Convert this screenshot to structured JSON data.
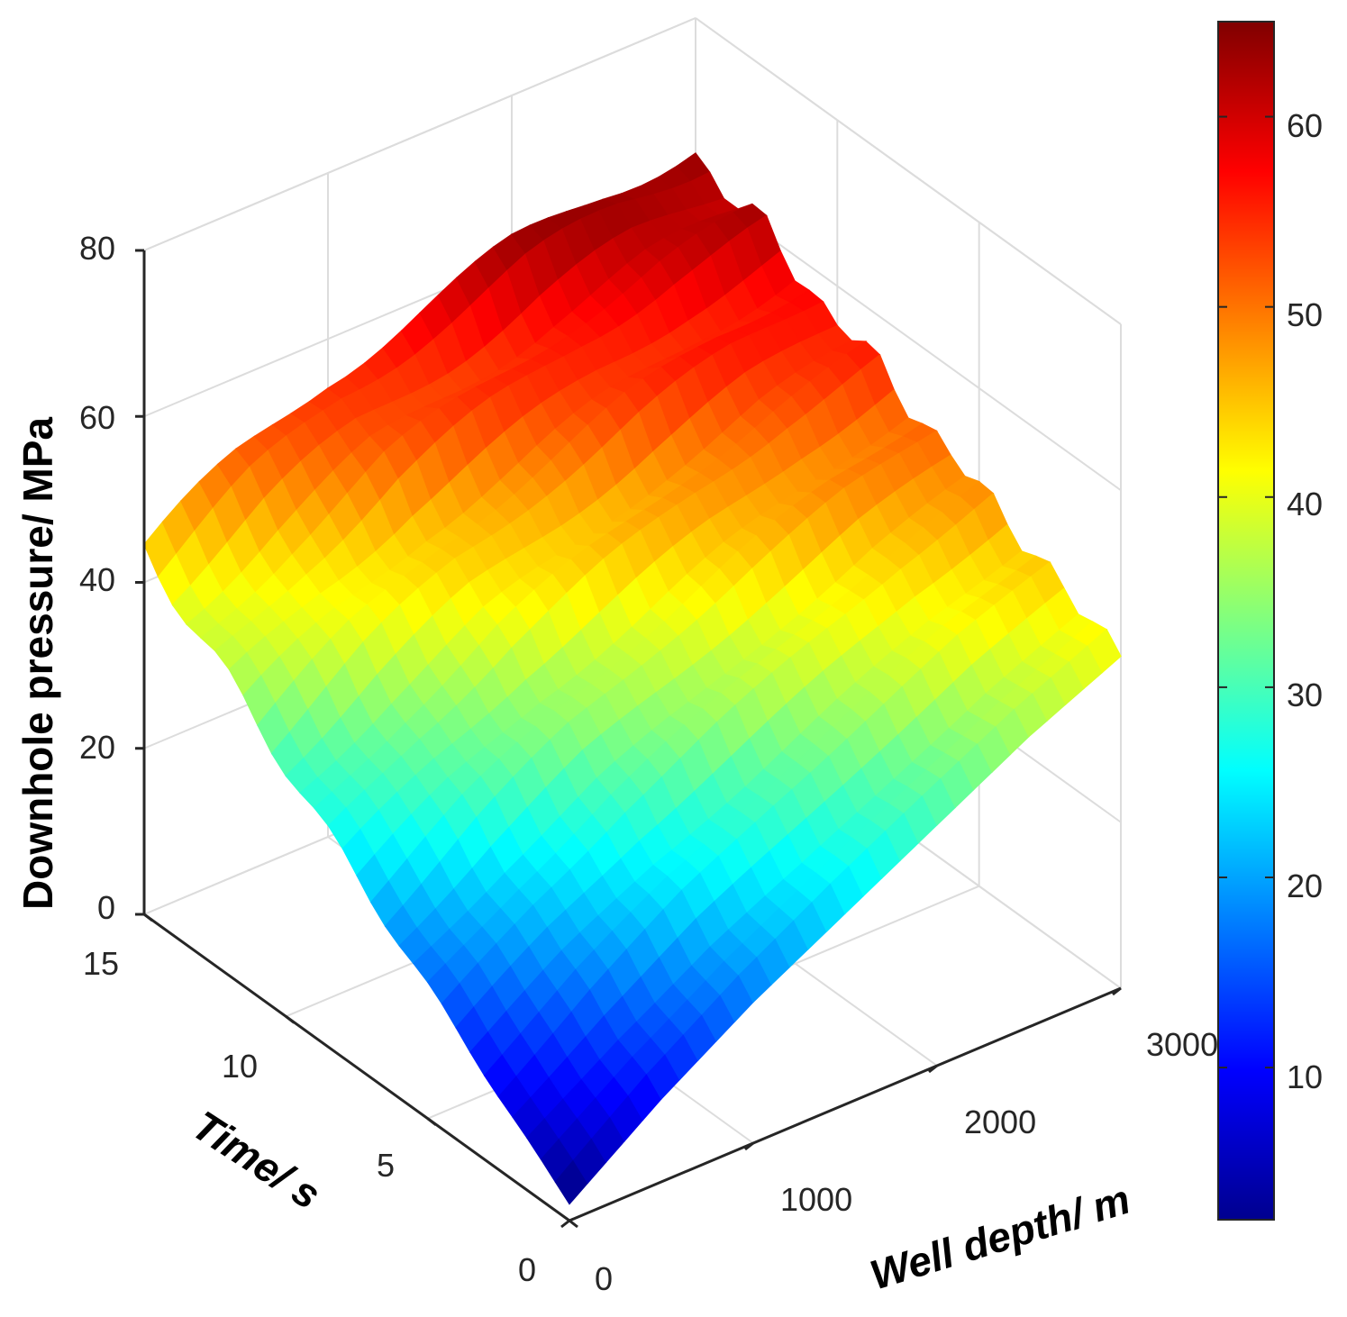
{
  "chart_data": {
    "type": "surface",
    "title": "",
    "xlabel": "Well depth/ m",
    "ylabel": "Time/ s",
    "zlabel": "Downhole pressure/ MPa",
    "xlim": [
      0,
      3000
    ],
    "ylim": [
      0,
      15
    ],
    "zlim": [
      0,
      80
    ],
    "x_ticks": [
      "0",
      "1000",
      "2000",
      "3000"
    ],
    "y_ticks": [
      "0",
      "5",
      "10",
      "15"
    ],
    "z_ticks": [
      "0",
      "20",
      "40",
      "60",
      "80"
    ],
    "x_tick_values": [
      0,
      1000,
      2000,
      3000
    ],
    "y_tick_values": [
      0,
      5,
      10,
      15
    ],
    "z_tick_values": [
      0,
      20,
      40,
      60,
      80
    ],
    "colormap": "jet",
    "colorbar": {
      "range": [
        2,
        65
      ],
      "ticks": [
        "10",
        "20",
        "30",
        "40",
        "50",
        "60"
      ],
      "tick_values": [
        10,
        20,
        30,
        40,
        50,
        60
      ]
    },
    "surface": {
      "depth_m": [
        0,
        500,
        1000,
        1500,
        2000,
        2500,
        3000
      ],
      "time_s": [
        0,
        1.5,
        3,
        4.5,
        6,
        7.5,
        9,
        10.5,
        12,
        13.5,
        15
      ],
      "pressure_mpa_at_time_0": [
        2,
        10,
        17,
        23,
        29,
        35,
        40
      ],
      "pressure_mpa_at_time_15": [
        44,
        50,
        55,
        58,
        61,
        63,
        64
      ],
      "grid": "regular"
    }
  }
}
